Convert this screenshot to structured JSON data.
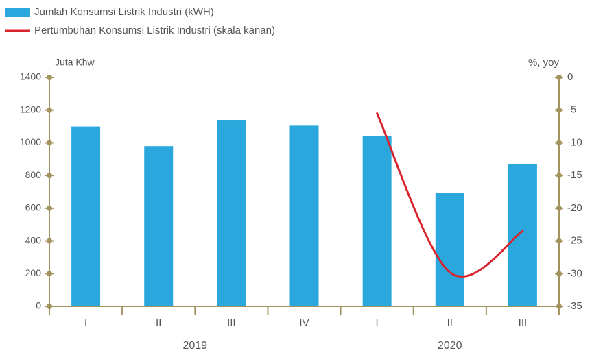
{
  "chart_data": {
    "type": "bar",
    "categories": [
      "I",
      "II",
      "III",
      "IV",
      "I",
      "II",
      "III"
    ],
    "groups": [
      {
        "label": "2019",
        "size": 4
      },
      {
        "label": "2020",
        "size": 3
      }
    ],
    "series": [
      {
        "name": "Jumlah Konsumsi Listrik Industri (kWH)",
        "type": "bar",
        "color": "#2aa7dc",
        "values": [
          1100,
          980,
          1140,
          1105,
          1040,
          695,
          870
        ]
      },
      {
        "name": "Pertumbuhan Konsumsi Listrik Industri (skala kanan)",
        "type": "line",
        "color": "#d9232d",
        "axis": "y2",
        "values": [
          null,
          null,
          null,
          null,
          -5.5,
          -29.8,
          -23.5
        ]
      }
    ],
    "ylabel": "Juta Khw",
    "y2label": "%, yoy",
    "ylim": [
      0,
      1400
    ],
    "yticks": [
      0,
      200,
      400,
      600,
      800,
      1000,
      1200,
      1400
    ],
    "y2lim": [
      -35,
      0
    ],
    "y2ticks": [
      0,
      -5,
      -10,
      -15,
      -20,
      -25,
      -30,
      -35
    ],
    "axis_color": "#a3935f"
  }
}
